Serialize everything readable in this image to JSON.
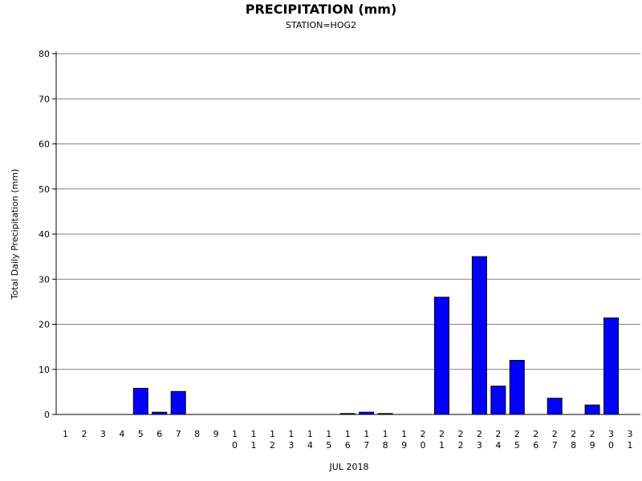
{
  "chart_data": {
    "type": "bar",
    "title": "PRECIPITATION (mm)",
    "subtitle": "STATION=HOG2",
    "xlabel": "JUL 2018",
    "ylabel": "Total Daily Precipitation (mm)",
    "ylim": [
      0,
      80
    ],
    "yticks": [
      0,
      10,
      20,
      30,
      40,
      50,
      60,
      70,
      80
    ],
    "grid": true,
    "bar_color": "#0000ff",
    "categories": [
      "1",
      "2",
      "3",
      "4",
      "5",
      "6",
      "7",
      "8",
      "9",
      "10",
      "11",
      "12",
      "13",
      "14",
      "15",
      "16",
      "17",
      "18",
      "19",
      "20",
      "21",
      "22",
      "23",
      "24",
      "25",
      "26",
      "27",
      "28",
      "29",
      "30",
      "31"
    ],
    "values": [
      0,
      0,
      0,
      0,
      5.8,
      0.5,
      5.1,
      0,
      0,
      0,
      0,
      0,
      0,
      0,
      0,
      0.2,
      0.5,
      0.2,
      0,
      0,
      26,
      0,
      35,
      6.3,
      12,
      0,
      3.6,
      0,
      2.1,
      21.4,
      0
    ]
  }
}
